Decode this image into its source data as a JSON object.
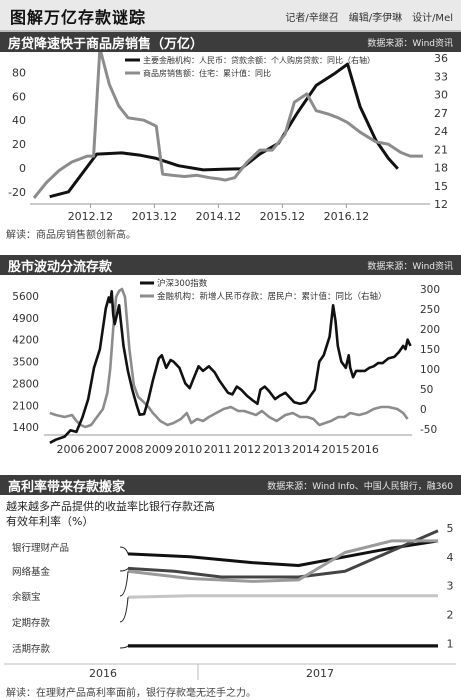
{
  "header": {
    "title": "图解万亿存款谜踪",
    "credits": "记者/辛继召　编辑/李伊琳　设计/Mel"
  },
  "section1": {
    "title": "房贷降速快于商品房销售（万亿）",
    "source": "数据来源：Wind资讯",
    "note": "解读：商品房销售额创新高。"
  },
  "section2": {
    "title": "股市波动分流存款",
    "source": "数据来源：Wind资讯",
    "note": ""
  },
  "section3": {
    "title": "高利率带来存款搬家",
    "source": "数据来源：Wind Info、中国人民银行，融360",
    "subtitle": "越来越多产品提供的收益率比银行存款还高",
    "ylabel": "有效年利率（%）",
    "note": "解读：在理财产品高利率面前，银行存款毫无还手之力。"
  },
  "colors": {
    "black": "#111111",
    "gray": "#8c8c8c",
    "bar": "#3c3c3c"
  },
  "chart_data": [
    {
      "type": "line",
      "x": [
        "2012.12",
        "2013.12",
        "2014.12",
        "2015.12",
        "2016.12"
      ],
      "yleft": {
        "ticks": [
          -20,
          0,
          20,
          40,
          60,
          80
        ],
        "range": [
          -30,
          92
        ]
      },
      "yright": {
        "ticks": [
          12,
          15,
          18,
          21,
          24,
          27,
          30,
          33,
          36
        ],
        "range": [
          12,
          36
        ]
      },
      "series": [
        {
          "name": "主要金融机构：人民币：贷款余额：个人购房贷款：同比（右轴）",
          "axis": "right",
          "color": "#111111",
          "points": [
            [
              2012.25,
              13.2
            ],
            [
              2012.55,
              14.0
            ],
            [
              2013.0,
              20.2
            ],
            [
              2013.4,
              20.4
            ],
            [
              2013.7,
              20.0
            ],
            [
              2013.95,
              19.5
            ],
            [
              2014.3,
              18.3
            ],
            [
              2014.7,
              17.6
            ],
            [
              2015.0,
              17.7
            ],
            [
              2015.3,
              17.8
            ],
            [
              2015.6,
              20.2
            ],
            [
              2015.9,
              22.0
            ],
            [
              2016.2,
              27.0
            ],
            [
              2016.5,
              31.5
            ],
            [
              2016.8,
              33.5
            ],
            [
              2017.0,
              35.0
            ],
            [
              2017.2,
              28.0
            ],
            [
              2017.45,
              22.5
            ],
            [
              2017.65,
              19.5
            ],
            [
              2017.8,
              17.8
            ]
          ]
        },
        {
          "name": "商品房销售额：住宅：累计值：同比",
          "axis": "left",
          "color": "#8c8c8c",
          "points": [
            [
              2012.0,
              -25
            ],
            [
              2012.2,
              -12
            ],
            [
              2012.4,
              -2
            ],
            [
              2012.6,
              5
            ],
            [
              2012.75,
              8
            ],
            [
              2012.85,
              10
            ],
            [
              2012.95,
              10
            ],
            [
              2013.05,
              100
            ],
            [
              2013.2,
              70
            ],
            [
              2013.35,
              52
            ],
            [
              2013.5,
              42
            ],
            [
              2013.75,
              40
            ],
            [
              2013.95,
              35
            ],
            [
              2014.05,
              -5
            ],
            [
              2014.2,
              -6
            ],
            [
              2014.4,
              -7
            ],
            [
              2014.6,
              -6
            ],
            [
              2014.8,
              -8
            ],
            [
              2014.95,
              -9
            ],
            [
              2015.05,
              -10
            ],
            [
              2015.2,
              -8
            ],
            [
              2015.4,
              5
            ],
            [
              2015.6,
              15
            ],
            [
              2015.8,
              15
            ],
            [
              2016.0,
              28
            ],
            [
              2016.15,
              55
            ],
            [
              2016.35,
              62
            ],
            [
              2016.5,
              48
            ],
            [
              2016.7,
              45
            ],
            [
              2016.85,
              42
            ],
            [
              2017.0,
              38
            ],
            [
              2017.2,
              30
            ],
            [
              2017.45,
              22
            ],
            [
              2017.65,
              20
            ],
            [
              2017.85,
              13
            ],
            [
              2018.0,
              10
            ],
            [
              2018.2,
              10
            ]
          ]
        }
      ]
    },
    {
      "type": "line",
      "x": [
        "2006",
        "2007",
        "2008",
        "2009",
        "2010",
        "2011",
        "2012",
        "2013",
        "2014",
        "2015",
        "2016"
      ],
      "yleft": {
        "ticks": [
          1400,
          2100,
          2800,
          3500,
          4200,
          4900,
          5600
        ],
        "range": [
          1150,
          5950
        ]
      },
      "yright": {
        "ticks": [
          -50,
          0,
          50,
          100,
          150,
          200,
          250,
          300
        ],
        "range": [
          -65,
          310
        ]
      },
      "series": [
        {
          "name": "沪深300指数",
          "axis": "left",
          "color": "#111111",
          "points": [
            [
              2005.8,
              900
            ],
            [
              2006.0,
              1000
            ],
            [
              2006.3,
              1100
            ],
            [
              2006.5,
              1300
            ],
            [
              2006.7,
              1250
            ],
            [
              2006.9,
              1700
            ],
            [
              2007.1,
              2300
            ],
            [
              2007.3,
              3300
            ],
            [
              2007.5,
              3900
            ],
            [
              2007.7,
              5200
            ],
            [
              2007.8,
              5550
            ],
            [
              2007.85,
              5400
            ],
            [
              2007.9,
              5750
            ],
            [
              2007.95,
              5000
            ],
            [
              2008.0,
              4700
            ],
            [
              2008.15,
              5300
            ],
            [
              2008.3,
              4000
            ],
            [
              2008.45,
              3200
            ],
            [
              2008.6,
              2600
            ],
            [
              2008.75,
              2100
            ],
            [
              2008.85,
              1800
            ],
            [
              2009.0,
              1820
            ],
            [
              2009.15,
              2300
            ],
            [
              2009.3,
              2900
            ],
            [
              2009.5,
              3600
            ],
            [
              2009.6,
              3700
            ],
            [
              2009.75,
              3300
            ],
            [
              2009.9,
              3550
            ],
            [
              2010.0,
              3500
            ],
            [
              2010.2,
              3300
            ],
            [
              2010.4,
              2800
            ],
            [
              2010.55,
              2650
            ],
            [
              2010.7,
              3000
            ],
            [
              2010.85,
              3350
            ],
            [
              2011.0,
              3200
            ],
            [
              2011.2,
              3350
            ],
            [
              2011.4,
              3150
            ],
            [
              2011.55,
              2900
            ],
            [
              2011.7,
              2700
            ],
            [
              2011.85,
              2500
            ],
            [
              2012.0,
              2450
            ],
            [
              2012.15,
              2700
            ],
            [
              2012.3,
              2600
            ],
            [
              2012.5,
              2400
            ],
            [
              2012.7,
              2250
            ],
            [
              2012.85,
              2150
            ],
            [
              2012.95,
              2600
            ],
            [
              2013.1,
              2700
            ],
            [
              2013.25,
              2550
            ],
            [
              2013.45,
              2300
            ],
            [
              2013.6,
              2400
            ],
            [
              2013.8,
              2500
            ],
            [
              2013.95,
              2350
            ],
            [
              2014.1,
              2200
            ],
            [
              2014.3,
              2150
            ],
            [
              2014.5,
              2200
            ],
            [
              2014.65,
              2400
            ],
            [
              2014.8,
              2600
            ],
            [
              2014.95,
              3500
            ],
            [
              2015.1,
              3700
            ],
            [
              2015.3,
              4300
            ],
            [
              2015.42,
              5300
            ],
            [
              2015.5,
              4800
            ],
            [
              2015.58,
              4000
            ],
            [
              2015.7,
              3500
            ],
            [
              2015.85,
              3300
            ],
            [
              2015.95,
              3700
            ],
            [
              2016.0,
              3300
            ],
            [
              2016.1,
              3000
            ],
            [
              2016.2,
              3200
            ],
            [
              2016.35,
              3200
            ],
            [
              2016.5,
              3200
            ],
            [
              2016.65,
              3300
            ],
            [
              2016.8,
              3350
            ],
            [
              2016.95,
              3450
            ],
            [
              2017.1,
              3450
            ],
            [
              2017.3,
              3600
            ],
            [
              2017.5,
              3650
            ],
            [
              2017.65,
              3800
            ],
            [
              2017.8,
              4000
            ],
            [
              2017.88,
              3900
            ],
            [
              2017.95,
              4200
            ],
            [
              2018.05,
              4000
            ]
          ]
        },
        {
          "name": "金融机构：新增人民币存款：居民户：累计值：同比（右轴）",
          "axis": "right",
          "color": "#8c8c8c",
          "points": [
            [
              2005.8,
              -10
            ],
            [
              2006.0,
              -15
            ],
            [
              2006.3,
              -20
            ],
            [
              2006.55,
              -15
            ],
            [
              2006.7,
              -30
            ],
            [
              2006.85,
              -40
            ],
            [
              2007.0,
              -45
            ],
            [
              2007.2,
              -40
            ],
            [
              2007.4,
              -20
            ],
            [
              2007.6,
              0
            ],
            [
              2007.75,
              40
            ],
            [
              2007.85,
              100
            ],
            [
              2007.95,
              200
            ],
            [
              2008.05,
              280
            ],
            [
              2008.15,
              295
            ],
            [
              2008.25,
              300
            ],
            [
              2008.35,
              280
            ],
            [
              2008.5,
              150
            ],
            [
              2008.65,
              60
            ],
            [
              2008.8,
              30
            ],
            [
              2008.95,
              20
            ],
            [
              2009.15,
              5
            ],
            [
              2009.3,
              -10
            ],
            [
              2009.55,
              -30
            ],
            [
              2009.8,
              -40
            ],
            [
              2010.0,
              -35
            ],
            [
              2010.25,
              -25
            ],
            [
              2010.45,
              -10
            ],
            [
              2010.6,
              -35
            ],
            [
              2010.8,
              -25
            ],
            [
              2011.0,
              -30
            ],
            [
              2011.2,
              -20
            ],
            [
              2011.45,
              -10
            ],
            [
              2011.7,
              0
            ],
            [
              2011.95,
              5
            ],
            [
              2012.2,
              -5
            ],
            [
              2012.4,
              -5
            ],
            [
              2012.6,
              -10
            ],
            [
              2012.8,
              -15
            ],
            [
              2013.0,
              -5
            ],
            [
              2013.25,
              -20
            ],
            [
              2013.5,
              -30
            ],
            [
              2013.8,
              -15
            ],
            [
              2014.05,
              -10
            ],
            [
              2014.3,
              -20
            ],
            [
              2014.55,
              -20
            ],
            [
              2014.75,
              -25
            ],
            [
              2014.95,
              -40
            ],
            [
              2015.15,
              -35
            ],
            [
              2015.35,
              -30
            ],
            [
              2015.6,
              -20
            ],
            [
              2015.8,
              -20
            ],
            [
              2016.0,
              -10
            ],
            [
              2016.3,
              -15
            ],
            [
              2016.55,
              -10
            ],
            [
              2016.8,
              0
            ],
            [
              2017.05,
              5
            ],
            [
              2017.3,
              5
            ],
            [
              2017.6,
              0
            ],
            [
              2017.8,
              -10
            ],
            [
              2017.95,
              -25
            ]
          ]
        }
      ]
    },
    {
      "type": "line",
      "x": [
        "2016",
        "2017"
      ],
      "yright": {
        "ticks": [
          1,
          2,
          3,
          4,
          5
        ],
        "range": [
          0.5,
          5.1
        ]
      },
      "series": [
        {
          "name": "银行理财产品",
          "color": "#111111",
          "points": [
            [
              0.0,
              4.1
            ],
            [
              0.2,
              4.0
            ],
            [
              0.4,
              3.8
            ],
            [
              0.55,
              3.7
            ],
            [
              0.7,
              4.0
            ],
            [
              0.85,
              4.3
            ],
            [
              1.0,
              4.55
            ]
          ]
        },
        {
          "name": "网络基金",
          "color": "#444444",
          "points": [
            [
              0.0,
              3.6
            ],
            [
              0.15,
              3.5
            ],
            [
              0.3,
              3.3
            ],
            [
              0.55,
              3.3
            ],
            [
              0.7,
              3.5
            ],
            [
              0.85,
              4.2
            ],
            [
              1.0,
              4.9
            ]
          ]
        },
        {
          "name": "余额宝",
          "color": "#9a9a9a",
          "points": [
            [
              0.0,
              3.5
            ],
            [
              0.2,
              3.25
            ],
            [
              0.4,
              3.15
            ],
            [
              0.55,
              3.2
            ],
            [
              0.7,
              4.15
            ],
            [
              0.85,
              4.55
            ],
            [
              1.0,
              4.55
            ]
          ]
        },
        {
          "name": "定期存款",
          "color": "#c4c4c4",
          "points": [
            [
              0.0,
              2.6
            ],
            [
              0.2,
              2.65
            ],
            [
              0.5,
              2.65
            ],
            [
              1.0,
              2.65
            ]
          ]
        },
        {
          "name": "活期存款",
          "color": "#111111",
          "points": [
            [
              0.0,
              0.92
            ],
            [
              1.0,
              0.92
            ]
          ]
        }
      ]
    }
  ]
}
